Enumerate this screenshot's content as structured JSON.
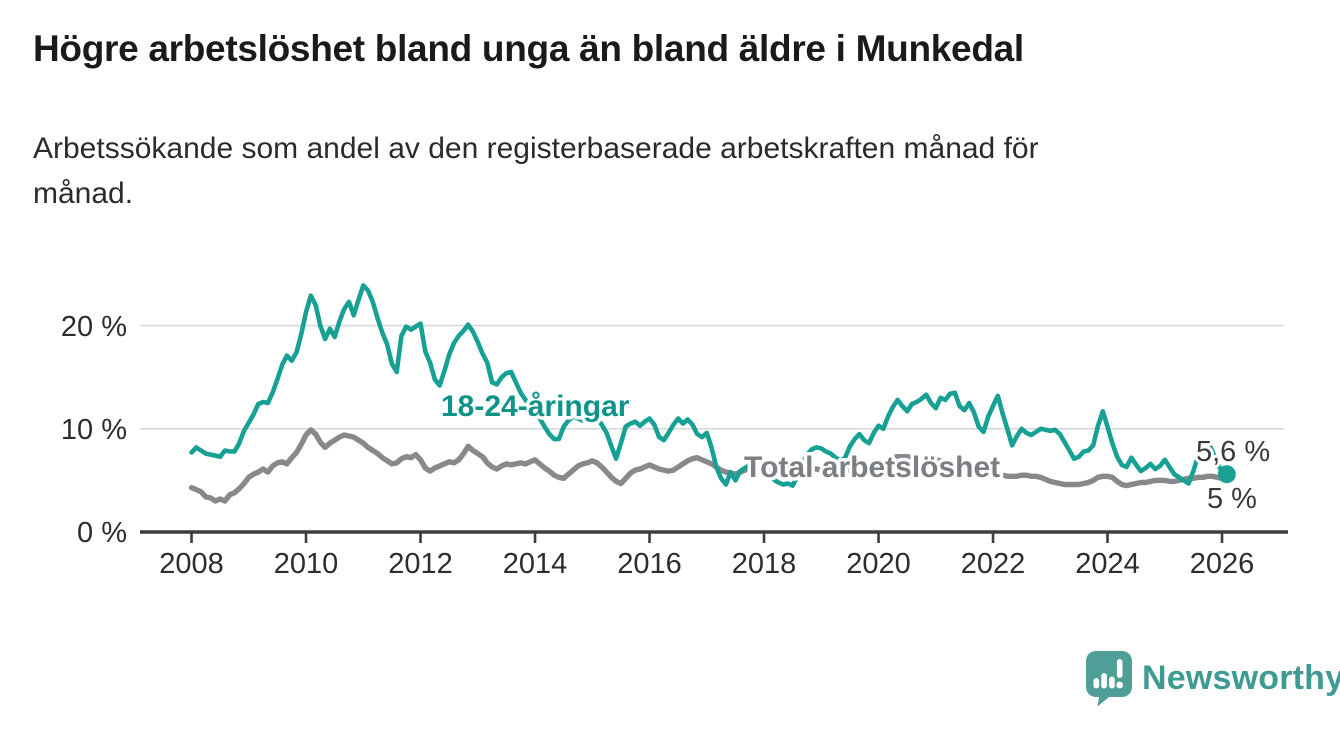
{
  "header": {
    "title": "Högre arbetslöshet bland unga än bland äldre i Munkedal",
    "subtitle_line1": "Arbetssökande som andel av den registerbaserade arbetskraften månad för",
    "subtitle_line2": "månad."
  },
  "chart_data": {
    "type": "line",
    "title": "Högre arbetslöshet bland unga än bland äldre i Munkedal",
    "subtitle": "Arbetssökande som andel av den registerbaserade arbetskraften månad för månad.",
    "x_axis": {
      "ticks": [
        2008,
        2010,
        2012,
        2014,
        2016,
        2018,
        2020,
        2022,
        2024,
        2026
      ],
      "range_years": [
        2007.1,
        2027.1
      ]
    },
    "y_axis": {
      "ticks": [
        {
          "value": 0,
          "label": "0 %"
        },
        {
          "value": 10,
          "label": "10 %"
        },
        {
          "value": 20,
          "label": "20 %"
        }
      ],
      "range": [
        0,
        24.5
      ],
      "grid": true
    },
    "x_start_year": 2008,
    "x_step_months": 1,
    "series": [
      {
        "name": "Total arbetslöshet",
        "color": "#87898c",
        "end_label": "5 %",
        "end_value": 5.0,
        "values": [
          4.3,
          4.1,
          3.9,
          3.4,
          3.3,
          3.0,
          3.2,
          3.0,
          3.6,
          3.8,
          4.2,
          4.7,
          5.3,
          5.6,
          5.8,
          6.1,
          5.8,
          6.4,
          6.7,
          6.8,
          6.6,
          7.2,
          7.7,
          8.5,
          9.4,
          9.9,
          9.5,
          8.7,
          8.2,
          8.6,
          8.9,
          9.2,
          9.4,
          9.3,
          9.2,
          8.9,
          8.6,
          8.2,
          7.9,
          7.6,
          7.2,
          6.9,
          6.6,
          6.7,
          7.1,
          7.3,
          7.2,
          7.5,
          7.0,
          6.2,
          5.9,
          6.2,
          6.4,
          6.6,
          6.8,
          6.7,
          7.0,
          7.6,
          8.3,
          7.9,
          7.6,
          7.3,
          6.7,
          6.3,
          6.1,
          6.4,
          6.6,
          6.5,
          6.6,
          6.7,
          6.6,
          6.8,
          7.0,
          6.6,
          6.2,
          5.9,
          5.5,
          5.3,
          5.2,
          5.6,
          6.0,
          6.4,
          6.6,
          6.7,
          6.9,
          6.7,
          6.3,
          5.8,
          5.3,
          4.9,
          4.7,
          5.2,
          5.7,
          6.0,
          6.1,
          6.3,
          6.5,
          6.3,
          6.1,
          6.0,
          5.9,
          6.0,
          6.3,
          6.6,
          6.9,
          7.1,
          7.2,
          7.0,
          6.8,
          6.6,
          6.3,
          6.0,
          5.8,
          5.7,
          5.6,
          5.8,
          6.0,
          6.2,
          6.3,
          6.3,
          6.2,
          6.0,
          5.9,
          5.8,
          5.7,
          5.7,
          5.8,
          5.9,
          6.0,
          6.1,
          6.1,
          6.1,
          6.0,
          5.9,
          5.8,
          5.8,
          5.9,
          6.0,
          6.0,
          6.1,
          6.1,
          6.2,
          6.3,
          6.4,
          6.5,
          6.6,
          6.9,
          7.2,
          7.3,
          7.3,
          7.3,
          7.2,
          7.2,
          7.1,
          7.1,
          7.0,
          7.0,
          6.9,
          6.8,
          6.7,
          6.6,
          6.5,
          6.4,
          6.2,
          6.1,
          6.0,
          5.9,
          5.8,
          5.7,
          5.6,
          5.5,
          5.4,
          5.4,
          5.4,
          5.5,
          5.5,
          5.4,
          5.4,
          5.3,
          5.1,
          4.9,
          4.8,
          4.7,
          4.6,
          4.6,
          4.6,
          4.6,
          4.7,
          4.8,
          5.0,
          5.3,
          5.4,
          5.4,
          5.3,
          4.9,
          4.6,
          4.5,
          4.6,
          4.7,
          4.8,
          4.8,
          4.9,
          5.0,
          5.0,
          5.0,
          4.9,
          4.9,
          5.0,
          5.1,
          5.2,
          5.2,
          5.3,
          5.3,
          5.4,
          5.4,
          5.3,
          5.2,
          5.0
        ]
      },
      {
        "name": "18-24-åringar",
        "color": "#17a094",
        "end_label": "5,6 %",
        "end_value": 5.6,
        "values": [
          7.7,
          8.2,
          7.9,
          7.6,
          7.5,
          7.4,
          7.3,
          7.9,
          7.8,
          7.8,
          8.6,
          9.8,
          10.6,
          11.4,
          12.4,
          12.6,
          12.5,
          13.5,
          14.8,
          16.2,
          17.1,
          16.6,
          17.4,
          19.2,
          21.3,
          22.9,
          22.0,
          20.0,
          18.7,
          19.7,
          18.9,
          20.4,
          21.6,
          22.3,
          21.0,
          22.5,
          23.9,
          23.4,
          22.3,
          20.7,
          19.3,
          18.2,
          16.3,
          15.5,
          19.0,
          19.9,
          19.6,
          19.9,
          20.2,
          17.5,
          16.4,
          14.8,
          14.2,
          15.6,
          17.2,
          18.3,
          19.0,
          19.5,
          20.1,
          19.4,
          18.4,
          17.3,
          16.4,
          14.5,
          14.3,
          15.0,
          15.4,
          15.5,
          14.5,
          13.5,
          12.8,
          12.2,
          11.8,
          11.0,
          10.2,
          9.5,
          9.0,
          9.0,
          10.2,
          10.8,
          11.2,
          11.0,
          10.8,
          11.2,
          11.5,
          11.0,
          10.4,
          9.6,
          8.3,
          7.1,
          8.6,
          10.2,
          10.5,
          10.7,
          10.3,
          10.7,
          11.0,
          10.4,
          9.2,
          8.9,
          9.6,
          10.4,
          11.0,
          10.5,
          10.9,
          10.4,
          9.5,
          9.2,
          9.6,
          8.2,
          6.3,
          5.2,
          4.6,
          5.8,
          5.0,
          5.9,
          6.2,
          6.5,
          6.6,
          6.4,
          6.3,
          5.6,
          5.1,
          4.8,
          4.6,
          4.7,
          4.5,
          5.4,
          6.6,
          7.5,
          8.0,
          8.2,
          8.1,
          7.8,
          7.6,
          7.2,
          6.9,
          7.2,
          8.3,
          9.0,
          9.5,
          8.9,
          8.6,
          9.6,
          10.3,
          10.0,
          11.2,
          12.1,
          12.8,
          12.2,
          11.7,
          12.4,
          12.6,
          12.9,
          13.3,
          12.5,
          12.0,
          13.0,
          12.8,
          13.4,
          13.5,
          12.2,
          11.8,
          12.5,
          11.6,
          10.2,
          9.7,
          11.2,
          12.2,
          13.2,
          11.5,
          10.0,
          8.4,
          9.3,
          10.0,
          9.6,
          9.4,
          9.7,
          10.0,
          9.9,
          9.8,
          9.9,
          9.5,
          8.7,
          7.9,
          7.1,
          7.3,
          7.8,
          7.9,
          8.4,
          10.3,
          11.7,
          10.2,
          8.6,
          7.3,
          6.5,
          6.3,
          7.2,
          6.5,
          5.9,
          6.2,
          6.6,
          6.1,
          6.4,
          7.0,
          6.3,
          5.6,
          5.3,
          5.0,
          4.7,
          5.9,
          7.4,
          8.6,
          8.8,
          7.8,
          6.6,
          5.9,
          5.6
        ]
      }
    ],
    "end_dot": {
      "series": "18-24-åringar",
      "value": 5.6
    }
  },
  "footer": {
    "brand": "Newsworthy"
  }
}
